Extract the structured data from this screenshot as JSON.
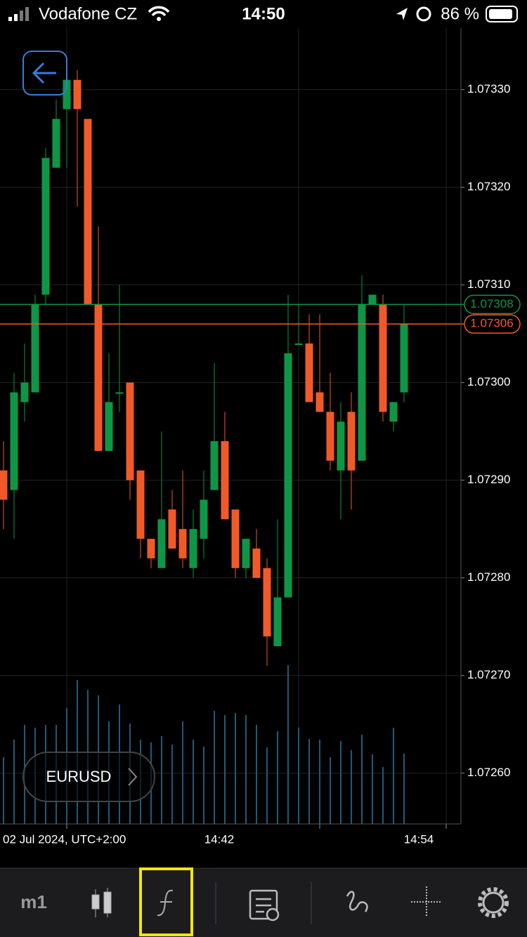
{
  "status_bar": {
    "carrier": "Vodafone CZ",
    "time": "14:50",
    "battery": "86 %"
  },
  "symbol": "EURUSD",
  "toolbar": {
    "timeframe": "m1"
  },
  "x_axis_labels": [
    "02 Jul 2024, UTC+2:00",
    "14:42",
    "14:54"
  ],
  "chart_data": {
    "type": "candlestick",
    "up_color": "#0e9646",
    "down_color": "#f05a28",
    "volume_color": "#1f5a78",
    "ylim": [
      1.073363,
      1.072548
    ],
    "yticks": [
      {
        "value": 1.0733,
        "label": "1.07330"
      },
      {
        "value": 1.0732,
        "label": "1.07320"
      },
      {
        "value": 1.0731,
        "label": "1.07310"
      },
      {
        "value": 1.073,
        "label": "1.07300"
      },
      {
        "value": 1.0729,
        "label": "1.07290"
      },
      {
        "value": 1.0728,
        "label": "1.07280"
      },
      {
        "value": 1.0727,
        "label": "1.07270"
      },
      {
        "value": 1.0726,
        "label": "1.07260"
      }
    ],
    "grid": true,
    "price_lines": [
      {
        "value": 1.07308,
        "color": "#0e9646"
      },
      {
        "value": 1.07306,
        "color": "#f05a28"
      }
    ],
    "open": [
      1.07291,
      1.07289,
      1.07298,
      1.07299,
      1.07309,
      1.07322,
      1.07328,
      1.07331,
      1.07327,
      1.07308,
      1.07293,
      1.07299,
      1.073,
      1.07291,
      1.07284,
      1.07281,
      1.07287,
      1.07285,
      1.07281,
      1.07284,
      1.07289,
      1.07294,
      1.07287,
      1.07281,
      1.07283,
      1.07281,
      1.07273,
      1.07278,
      1.07304,
      1.07304,
      1.07299,
      1.07297,
      1.07291,
      1.07297,
      1.07292,
      1.07308,
      1.07308,
      1.07296,
      1.07299
    ],
    "high": [
      1.07294,
      1.07301,
      1.07304,
      1.07309,
      1.07324,
      1.07329,
      1.07332,
      1.07332,
      1.07327,
      1.07316,
      1.07303,
      1.0731,
      1.073,
      1.07291,
      1.07284,
      1.07295,
      1.07289,
      1.07291,
      1.07287,
      1.07291,
      1.07302,
      1.07297,
      1.07287,
      1.07284,
      1.07285,
      1.07282,
      1.07286,
      1.07309,
      1.07308,
      1.07307,
      1.07307,
      1.07301,
      1.07298,
      1.07299,
      1.07311,
      1.07309,
      1.07309,
      1.07298,
      1.07308
    ],
    "low": [
      1.07285,
      1.07284,
      1.07296,
      1.07299,
      1.07308,
      1.07322,
      1.07322,
      1.07318,
      1.07308,
      1.07293,
      1.07293,
      1.07297,
      1.07288,
      1.07282,
      1.07281,
      1.07281,
      1.07283,
      1.07281,
      1.0728,
      1.07282,
      1.07289,
      1.07286,
      1.0728,
      1.0728,
      1.0728,
      1.07271,
      1.07273,
      1.07278,
      1.07304,
      1.07298,
      1.07297,
      1.07291,
      1.07286,
      1.07287,
      1.07292,
      1.07308,
      1.07296,
      1.07295,
      1.07298
    ],
    "close": [
      1.07288,
      1.07299,
      1.073,
      1.07308,
      1.07323,
      1.07327,
      1.07331,
      1.07328,
      1.07308,
      1.07293,
      1.07298,
      1.07299,
      1.0729,
      1.07284,
      1.07282,
      1.07286,
      1.07283,
      1.07282,
      1.07285,
      1.07288,
      1.07294,
      1.07286,
      1.07281,
      1.07284,
      1.0728,
      1.07274,
      1.07278,
      1.07303,
      1.07304,
      1.07298,
      1.07297,
      1.07292,
      1.07296,
      1.07291,
      1.07308,
      1.07309,
      1.07297,
      1.07298,
      1.07306
    ],
    "volume": [
      95,
      120,
      141,
      137,
      141,
      141,
      165,
      205,
      191,
      183,
      146,
      170,
      143,
      120,
      116,
      125,
      113,
      146,
      120,
      110,
      161,
      155,
      158,
      155,
      141,
      109,
      132,
      226,
      137,
      121,
      120,
      95,
      118,
      105,
      127,
      99,
      81,
      137,
      100
    ]
  }
}
